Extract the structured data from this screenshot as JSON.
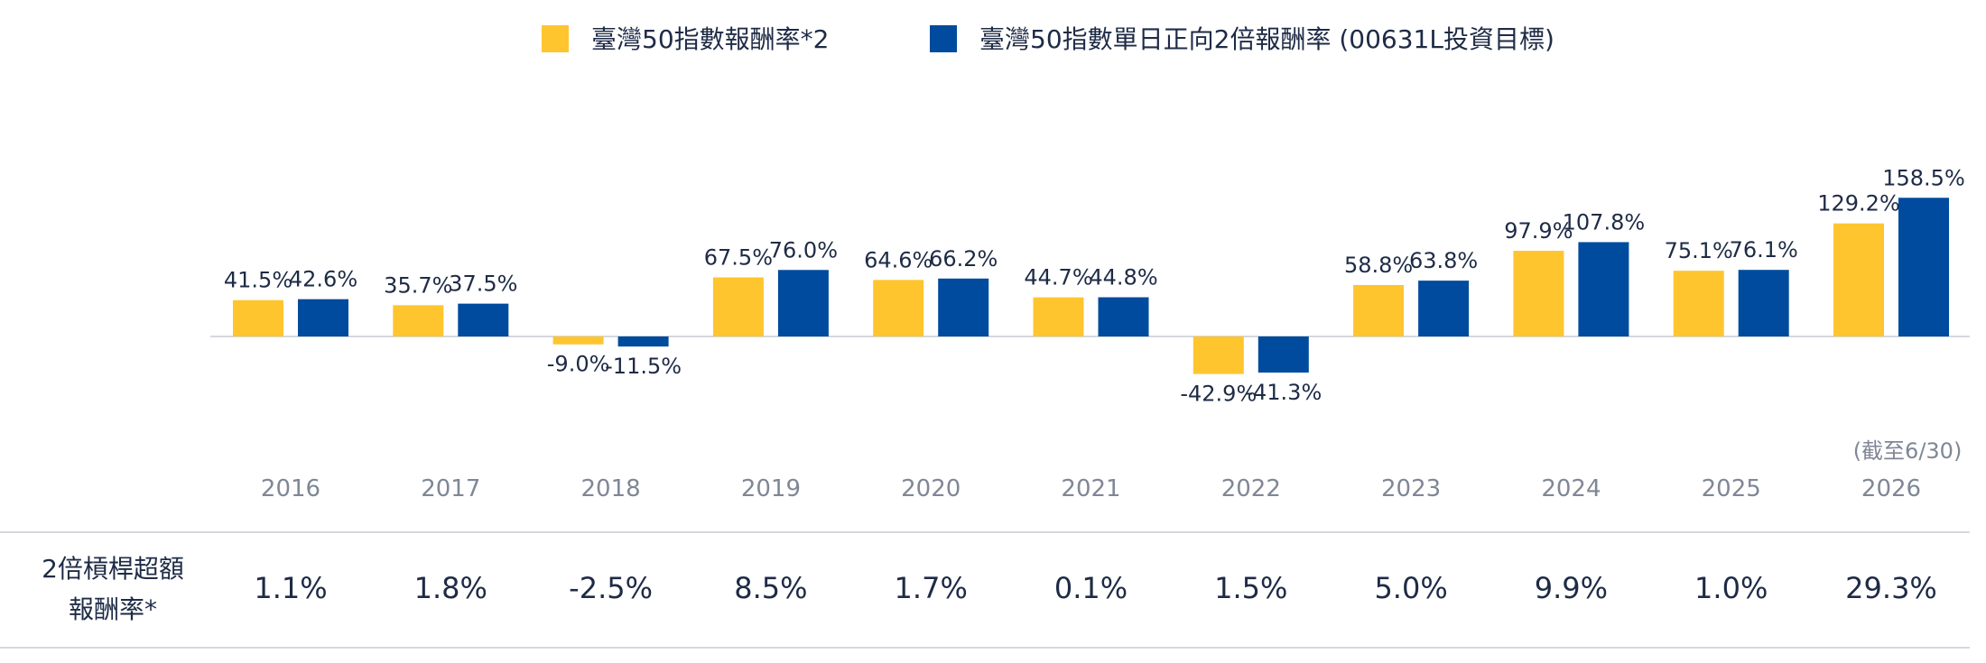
{
  "legend": {
    "series_a": "臺灣50指數報酬率*2",
    "series_b": "臺灣50指數單日正向2倍報酬率 (00631L投資目標)"
  },
  "colors": {
    "series_a": "#FFC52F",
    "series_b": "#004B9E",
    "label_dark": "#1E2B46",
    "axis_gray": "#7F8796",
    "rule_gray": "#D5D8DD"
  },
  "chart_data": {
    "type": "bar",
    "categories": [
      "2016",
      "2017",
      "2018",
      "2019",
      "2020",
      "2021",
      "2022",
      "2023",
      "2024",
      "2025",
      "2026"
    ],
    "category_notes": {
      "2026": "(截至6/30)"
    },
    "series": [
      {
        "name": "臺灣50指數報酬率*2",
        "values": [
          41.5,
          35.7,
          -9.0,
          67.5,
          64.6,
          44.7,
          -42.9,
          58.8,
          97.9,
          75.1,
          129.2
        ],
        "labels": [
          "41.5%",
          "35.7%",
          "-9.0%",
          "67.5%",
          "64.6%",
          "44.7%",
          "-42.9%",
          "58.8%",
          "97.9%",
          "75.1%",
          "129.2%"
        ]
      },
      {
        "name": "臺灣50指數單日正向2倍報酬率 (00631L投資目標)",
        "values": [
          42.6,
          37.5,
          -11.5,
          76.0,
          66.2,
          44.8,
          -41.3,
          63.8,
          107.8,
          76.1,
          158.5
        ],
        "labels": [
          "42.6%",
          "37.5%",
          "-11.5%",
          "76.0%",
          "66.2%",
          "44.8%",
          "-41.3%",
          "63.8%",
          "107.8%",
          "76.1%",
          "158.5%"
        ]
      }
    ],
    "ylim": [
      -60,
      165
    ],
    "grid": false,
    "legend_position": "top-center",
    "table_row": {
      "label_line1": "2倍槓桿超額",
      "label_line2": "報酬率*",
      "values": [
        "1.1%",
        "1.8%",
        "-2.5%",
        "8.5%",
        "1.7%",
        "0.1%",
        "1.5%",
        "5.0%",
        "9.9%",
        "1.0%",
        "29.3%"
      ]
    }
  }
}
